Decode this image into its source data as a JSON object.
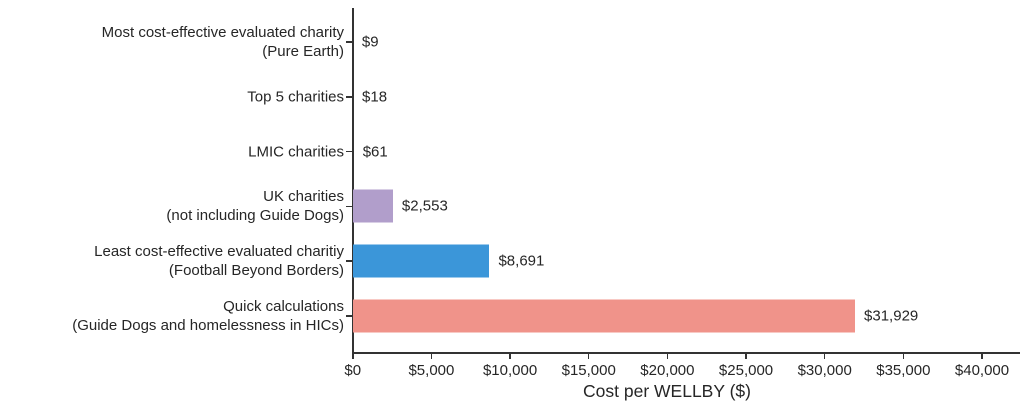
{
  "colors": {
    "text": "#262626",
    "axis": "#333333",
    "background": "#ffffff"
  },
  "chart_data": {
    "type": "bar",
    "orientation": "horizontal",
    "title": "",
    "xlabel": "Cost per WELLBY ($)",
    "ylabel": "",
    "xlim": [
      0,
      40000
    ],
    "grid": false,
    "legend": null,
    "categories": [
      {
        "lines": [
          "Most cost-effective evaluated charity",
          "(Pure Earth)"
        ]
      },
      {
        "lines": [
          "Top 5 charities"
        ]
      },
      {
        "lines": [
          "LMIC charities"
        ]
      },
      {
        "lines": [
          "UK charities",
          "(not including Guide Dogs)"
        ]
      },
      {
        "lines": [
          "Least cost-effective evaluated charitiy",
          "(Football Beyond Borders)"
        ]
      },
      {
        "lines": [
          "Quick calculations",
          "(Guide Dogs and homelessness in HICs)"
        ]
      }
    ],
    "values": [
      9,
      18,
      61,
      2553,
      8691,
      31929
    ],
    "value_labels": [
      "$9",
      "$18",
      "$61",
      "$2,553",
      "$8,691",
      "$31,929"
    ],
    "bar_colors": [
      null,
      null,
      null,
      "#b19ecb",
      "#3b96d9",
      "#f0938a"
    ],
    "x_ticks": [
      {
        "value": 0,
        "label": "$0"
      },
      {
        "value": 5000,
        "label": "$5,000"
      },
      {
        "value": 10000,
        "label": "$10,000"
      },
      {
        "value": 15000,
        "label": "$15,000"
      },
      {
        "value": 20000,
        "label": "$20,000"
      },
      {
        "value": 25000,
        "label": "$25,000"
      },
      {
        "value": 30000,
        "label": "$30,000"
      },
      {
        "value": 35000,
        "label": "$35,000"
      },
      {
        "value": 40000,
        "label": "$40,000"
      }
    ]
  }
}
